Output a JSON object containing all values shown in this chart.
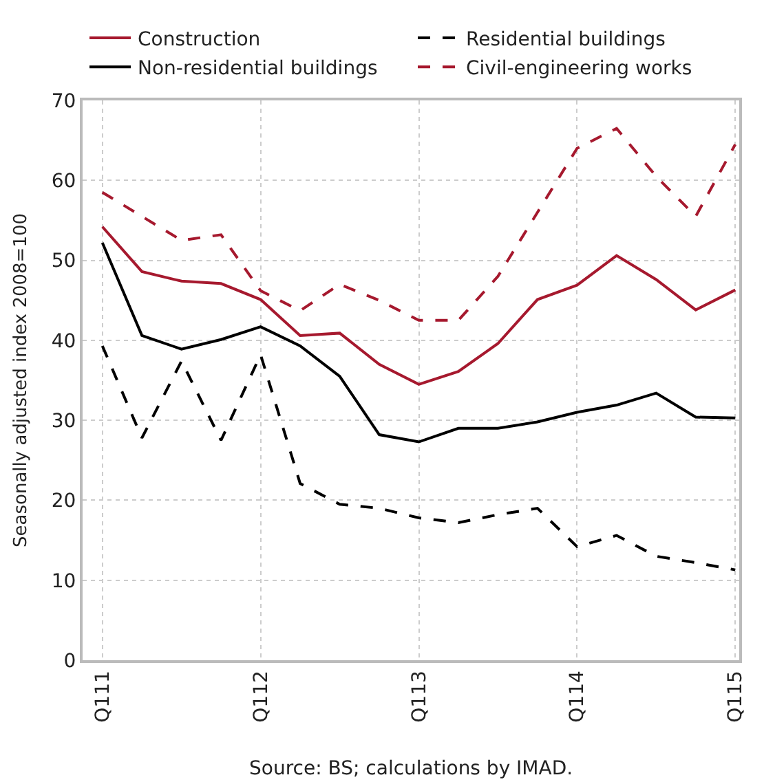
{
  "chart_data": {
    "type": "line",
    "categories": [
      "Q111",
      null,
      null,
      null,
      "Q112",
      null,
      null,
      null,
      "Q113",
      null,
      null,
      null,
      "Q114",
      null,
      null,
      null,
      "Q115"
    ],
    "series": [
      {
        "name": "Construction",
        "color": "#a6192e",
        "line_style": "solid",
        "values": [
          54.2,
          48.6,
          47.4,
          47.1,
          45.1,
          40.6,
          40.9,
          37,
          34.5,
          36.1,
          39.6,
          45.1,
          46.9,
          50.6,
          47.6,
          43.8,
          46.3
        ]
      },
      {
        "name": "Residential buildings",
        "color": "#000000",
        "line_style": "dashed",
        "values": [
          39.3,
          27.8,
          37.4,
          27.5,
          38.2,
          22.1,
          19.5,
          19,
          17.8,
          17.2,
          18.2,
          19,
          14.2,
          15.6,
          13,
          12.2,
          11.3
        ]
      },
      {
        "name": "Non-residential buildings",
        "color": "#000000",
        "line_style": "solid",
        "values": [
          52.2,
          40.6,
          38.9,
          40.1,
          41.7,
          39.3,
          35.5,
          28.2,
          27.3,
          29,
          29,
          29.8,
          31,
          31.9,
          33.4,
          30.4,
          30.3
        ]
      },
      {
        "name": "Civil-engineering works",
        "color": "#a6192e",
        "line_style": "dashed",
        "values": [
          58.5,
          55.5,
          52.5,
          53.2,
          46.2,
          43.7,
          47,
          45,
          42.5,
          42.5,
          48,
          56,
          64,
          66.5,
          60.5,
          55.5,
          64.5
        ]
      }
    ],
    "ylabel": "Seasonally adjusted index 2008=100",
    "ylim": [
      0,
      70
    ],
    "yticks": [
      0,
      10,
      20,
      30,
      40,
      50,
      60,
      70
    ],
    "grid": true,
    "legend": "top",
    "marker": "none",
    "annotations": [
      "Source: BS; calculations by IMAD."
    ]
  }
}
